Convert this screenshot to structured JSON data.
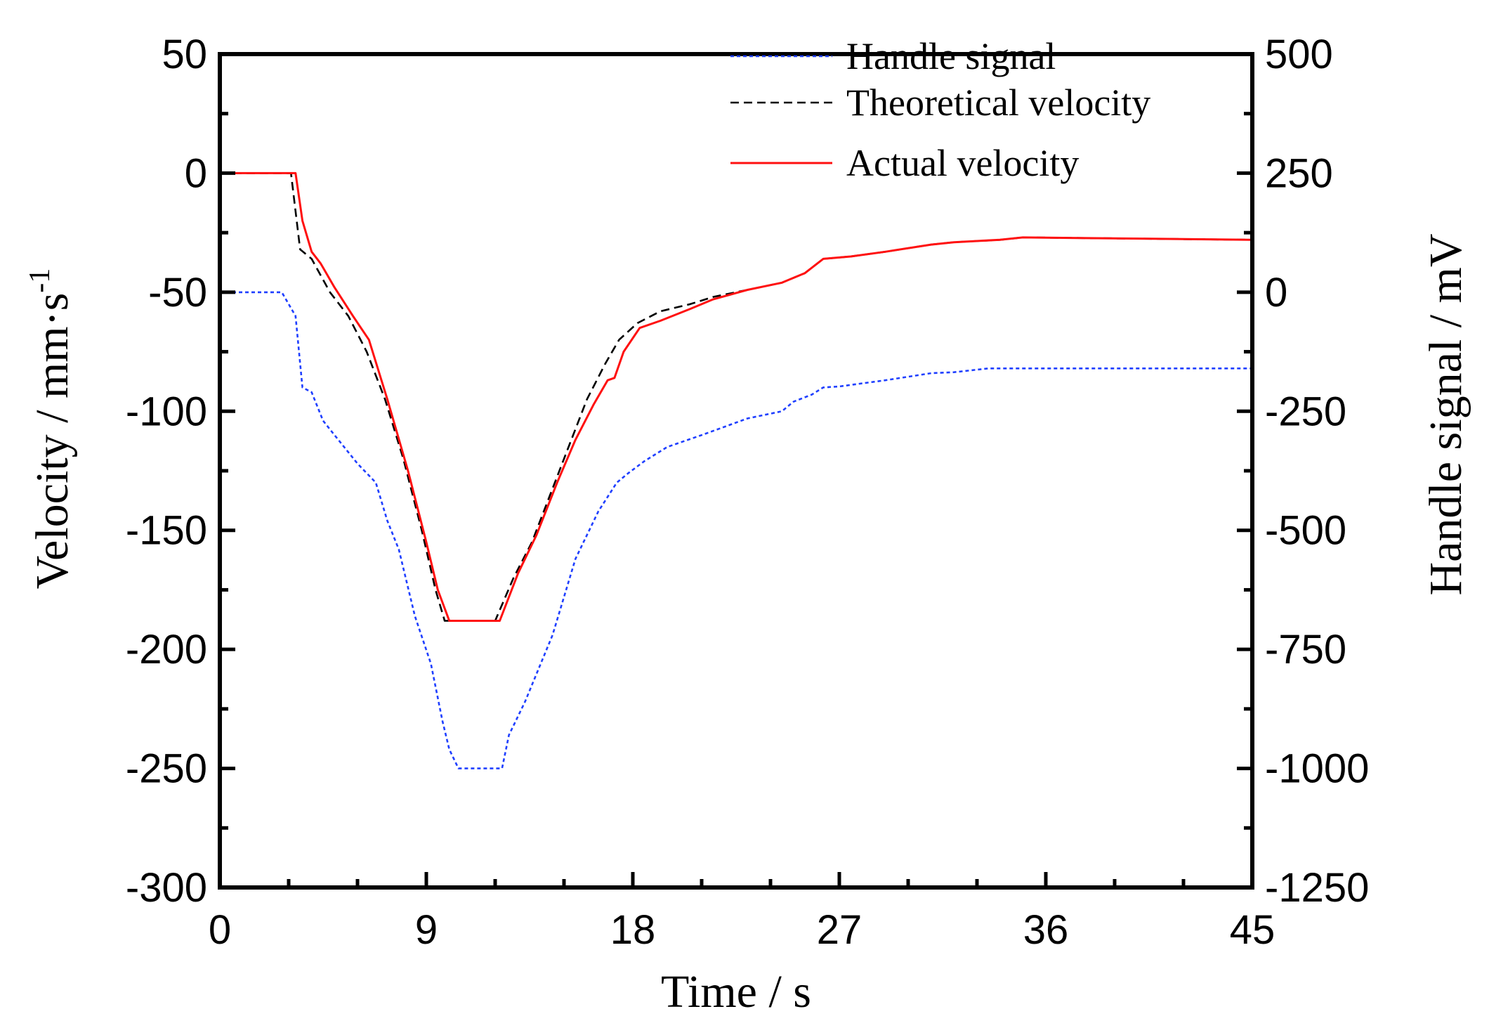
{
  "chart_data": {
    "type": "line",
    "title": "",
    "xlabel": "Time  / s",
    "ylabel_left": "Velocity  / mm·s",
    "ylabel_left_sup": "-1",
    "ylabel_right": "Handle signal / mV",
    "xlim": [
      0,
      45
    ],
    "ylim_left": [
      -300,
      50
    ],
    "ylim_right": [
      -1250,
      500
    ],
    "x_ticks": [
      "0",
      "9",
      "18",
      "27",
      "36",
      "45"
    ],
    "y_left_ticks": [
      "50",
      "0",
      "-50",
      "-100",
      "-150",
      "-200",
      "-250",
      "-300"
    ],
    "y_right_ticks": [
      "500",
      "250",
      "0",
      "-250",
      "-500",
      "-750",
      "-1000",
      "-1250"
    ],
    "grid": false,
    "legend_position": "top-right",
    "series": [
      {
        "name": "Handle signal",
        "axis": "right",
        "style": "dotted",
        "color": "#1f3fff",
        "x": [
          0,
          2.7,
          3.3,
          3.6,
          4.0,
          4.5,
          5.0,
          6.0,
          6.8,
          7.3,
          7.8,
          8.5,
          9.2,
          9.7,
          10.0,
          10.4,
          12.3,
          12.6,
          13.3,
          14.5,
          15.5,
          16.5,
          17.3,
          17.8,
          18.5,
          19.5,
          21.0,
          23.0,
          24.5,
          25.0,
          25.8,
          26.3,
          27.0,
          29.0,
          31.0,
          32.0,
          33.5,
          34.5,
          37.0,
          45.0
        ],
        "y": [
          0,
          0,
          -50,
          -200,
          -210,
          -270,
          -300,
          -360,
          -400,
          -480,
          -540,
          -680,
          -780,
          -900,
          -960,
          -1000,
          -1000,
          -930,
          -860,
          -720,
          -560,
          -460,
          -400,
          -380,
          -355,
          -325,
          -300,
          -265,
          -250,
          -230,
          -215,
          -200,
          -198,
          -185,
          -170,
          -168,
          -160,
          -160,
          -160,
          -160
        ]
      },
      {
        "name": "Theoretical velocity",
        "axis": "left",
        "style": "dashed",
        "color": "#000000",
        "x": [
          0,
          3.1,
          3.5,
          4.0,
          4.8,
          5.6,
          6.4,
          7.2,
          8.0,
          8.8,
          9.4,
          9.8,
          12.0,
          12.8,
          13.6,
          14.4,
          15.2,
          16.0,
          16.8,
          17.4,
          18.2,
          19.2,
          20.5,
          21.5,
          23.0,
          24.5,
          25.5,
          26.3,
          27.5,
          29.0,
          31.0,
          32.0,
          34.0,
          35.0,
          45.0
        ],
        "y": [
          0,
          0,
          -32,
          -36,
          -50,
          -60,
          -75,
          -95,
          -120,
          -150,
          -175,
          -188,
          -188,
          -170,
          -155,
          -135,
          -115,
          -95,
          -80,
          -70,
          -63,
          -58,
          -55,
          -52,
          -49,
          -46,
          -42,
          -36,
          -35,
          -33,
          -30,
          -29,
          -28,
          -27,
          -28
        ]
      },
      {
        "name": "Actual velocity",
        "axis": "left",
        "style": "solid",
        "color": "#ff1010",
        "x": [
          0,
          3.3,
          3.6,
          4.0,
          4.4,
          5.0,
          5.8,
          6.5,
          7.3,
          8.2,
          9.0,
          9.5,
          10.0,
          12.2,
          13.0,
          13.8,
          14.7,
          15.5,
          16.3,
          16.9,
          17.2,
          17.6,
          18.3,
          19.2,
          20.5,
          21.5,
          23.0,
          24.5,
          25.5,
          26.3,
          27.5,
          29.0,
          31.0,
          32.0,
          34.0,
          35.0,
          45.0
        ],
        "y": [
          0,
          0,
          -20,
          -33,
          -38,
          -48,
          -60,
          -70,
          -95,
          -125,
          -155,
          -175,
          -188,
          -188,
          -168,
          -152,
          -130,
          -112,
          -97,
          -87,
          -86,
          -75,
          -65,
          -62,
          -57,
          -53,
          -49,
          -46,
          -42,
          -36,
          -35,
          -33,
          -30,
          -29,
          -28,
          -27,
          -28
        ]
      }
    ]
  }
}
